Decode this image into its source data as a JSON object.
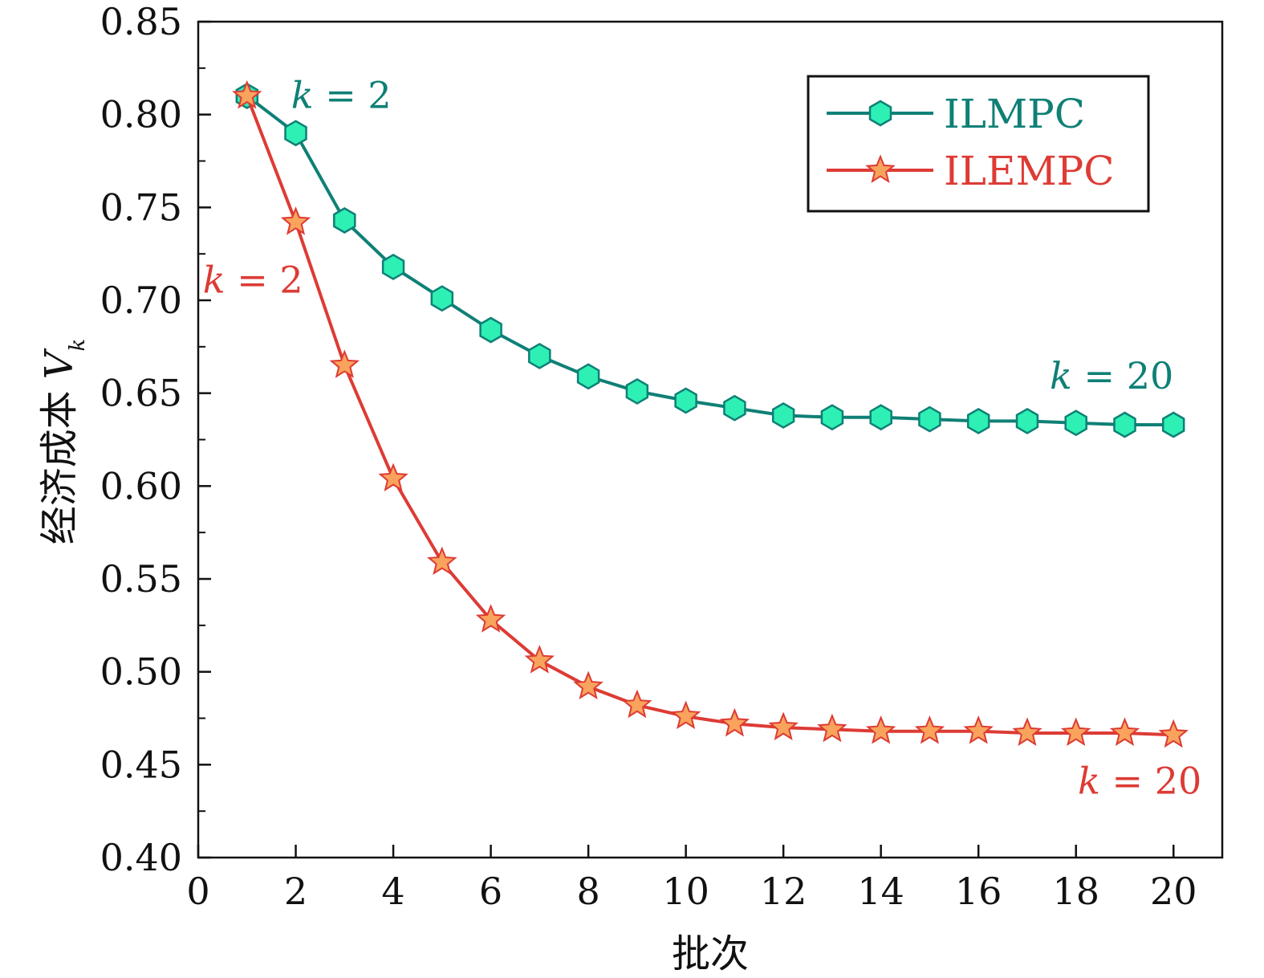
{
  "chart_data": {
    "type": "line",
    "title": "",
    "xlabel": "批次",
    "ylabel": "经济成本",
    "ylabel_symbol": "V",
    "ylabel_subscript": "k",
    "xlim": [
      0,
      21
    ],
    "ylim": [
      0.4,
      0.85
    ],
    "x_ticks": [
      0,
      2,
      4,
      6,
      8,
      10,
      12,
      14,
      16,
      18,
      20
    ],
    "x_tick_labels": [
      "0",
      "2",
      "4",
      "6",
      "8",
      "10",
      "12",
      "14",
      "16",
      "18",
      "20"
    ],
    "y_ticks": [
      0.4,
      0.45,
      0.5,
      0.55,
      0.6,
      0.65,
      0.7,
      0.75,
      0.8,
      0.85
    ],
    "y_tick_labels": [
      "0.40",
      "0.45",
      "0.50",
      "0.55",
      "0.60",
      "0.65",
      "0.70",
      "0.75",
      "0.80",
      "0.85"
    ],
    "y_minor_step": 0.025,
    "x": [
      1,
      2,
      3,
      4,
      5,
      6,
      7,
      8,
      9,
      10,
      11,
      12,
      13,
      14,
      15,
      16,
      17,
      18,
      19,
      20
    ],
    "series": [
      {
        "name": "ILMPC",
        "color": "#0f8076",
        "marker": "hexagon",
        "marker_fill": "#2ef0b4",
        "values": [
          0.81,
          0.79,
          0.743,
          0.718,
          0.701,
          0.684,
          0.67,
          0.659,
          0.651,
          0.646,
          0.642,
          0.638,
          0.637,
          0.637,
          0.636,
          0.635,
          0.635,
          0.634,
          0.633,
          0.633
        ]
      },
      {
        "name": "ILEMPC",
        "color": "#dd3b35",
        "marker": "star",
        "marker_fill": "#f9a35c",
        "values": [
          0.81,
          0.742,
          0.665,
          0.604,
          0.559,
          0.528,
          0.506,
          0.492,
          0.482,
          0.476,
          0.472,
          0.47,
          0.469,
          0.468,
          0.468,
          0.468,
          0.467,
          0.467,
          0.467,
          0.466
        ]
      }
    ],
    "legend_position": "top-right",
    "annotations": [
      {
        "series": "ILMPC",
        "text": "k = 2",
        "x": 1,
        "y": 0.81
      },
      {
        "series": "ILMPC",
        "text": "k = 20",
        "x": 20,
        "y": 0.633
      },
      {
        "series": "ILEMPC",
        "text": "k = 2",
        "x": 1,
        "y": 0.81
      },
      {
        "series": "ILEMPC",
        "text": "k = 20",
        "x": 20,
        "y": 0.466
      }
    ]
  }
}
